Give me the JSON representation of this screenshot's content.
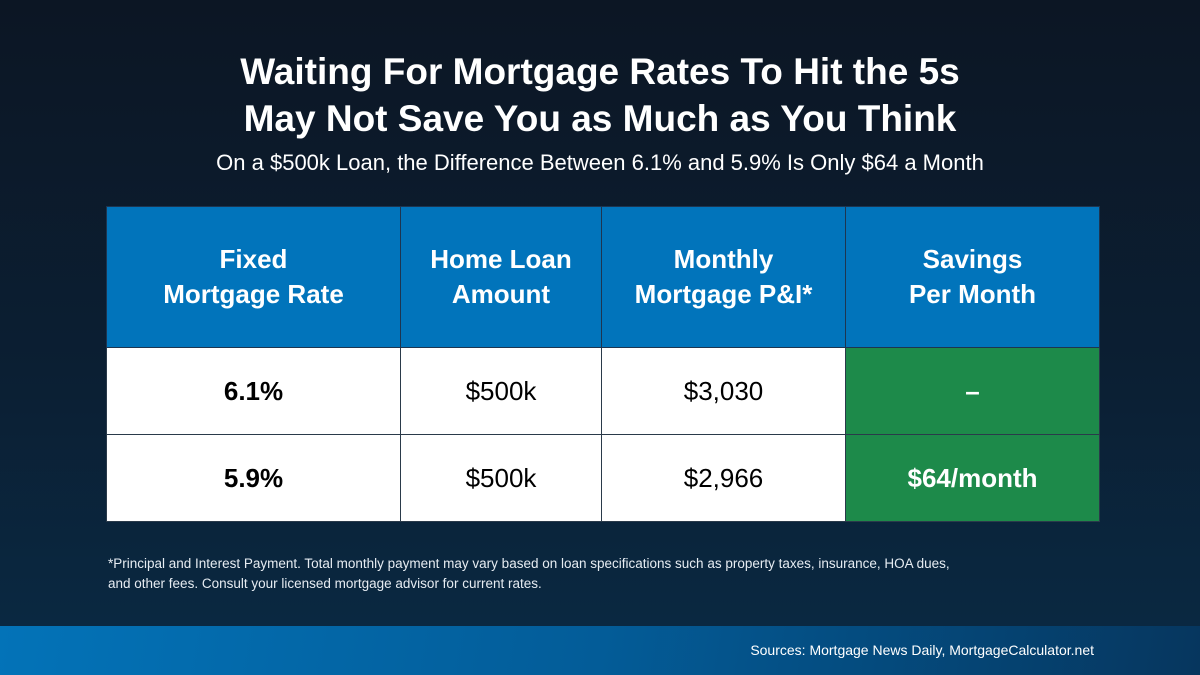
{
  "title_line1": "Waiting For Mortgage Rates To Hit the 5s",
  "title_line2": "May Not Save You as Much as You Think",
  "subtitle": "On a $500k Loan, the Difference Between 6.1% and 5.9% Is Only $64 a Month",
  "chart_data": {
    "type": "table",
    "columns": [
      "Fixed\nMortgage Rate",
      "Home Loan\nAmount",
      "Monthly\nMortgage P&I*",
      "Savings\nPer Month"
    ],
    "rows": [
      [
        "6.1%",
        "$500k",
        "$3,030",
        "–"
      ],
      [
        "5.9%",
        "$500k",
        "$2,966",
        "$64/month"
      ]
    ]
  },
  "colors": {
    "header": "#0174bb",
    "savings": "#1d8a4a",
    "background": "#0b1f33"
  },
  "footnote_line1": "*Principal and Interest Payment. Total monthly payment may vary based on loan specifications such as property taxes, insurance, HOA dues,",
  "footnote_line2": "and other fees. Consult your licensed mortgage advisor for current rates.",
  "sources": "Sources: Mortgage News Daily, MortgageCalculator.net"
}
